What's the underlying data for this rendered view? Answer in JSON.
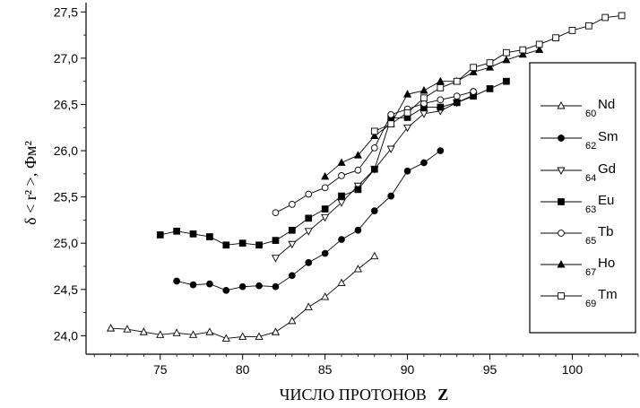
{
  "chart_data": {
    "type": "line",
    "xlabel_main": "ЧИСЛО ПРОТОНОВ",
    "xlabel_var": "Z",
    "ylabel": "δ < r² >, Фм²",
    "xlim": [
      70.5,
      104
    ],
    "ylim": [
      23.8,
      27.6
    ],
    "x_ticks": [
      75,
      80,
      85,
      90,
      95,
      100
    ],
    "x_tick_labels": [
      "75",
      "80",
      "85",
      "90",
      "95",
      "100"
    ],
    "y_ticks": [
      24.0,
      24.5,
      25.0,
      25.5,
      26.0,
      26.5,
      27.0,
      27.5
    ],
    "y_tick_labels": [
      "24,0",
      "24,5",
      "25,0",
      "25,5",
      "26,0",
      "26,5",
      "27,0",
      "27,5"
    ],
    "grid": false,
    "legend_position": "right",
    "series": [
      {
        "name": "Nd",
        "z": "60",
        "marker": "triangle-up-open",
        "x": [
          72,
          73,
          74,
          75,
          76,
          77,
          78,
          79,
          80,
          81,
          82,
          83,
          84,
          85,
          86,
          87,
          88
        ],
        "y": [
          24.08,
          24.07,
          24.04,
          24.01,
          24.03,
          24.01,
          24.04,
          23.97,
          23.99,
          23.99,
          24.04,
          24.16,
          24.31,
          24.42,
          24.57,
          24.72,
          24.86
        ]
      },
      {
        "name": "Sm",
        "z": "62",
        "marker": "circle-filled",
        "x": [
          76,
          77,
          78,
          79,
          80,
          81,
          82,
          83,
          84,
          85,
          86,
          87,
          88,
          89,
          90,
          91,
          92
        ],
        "y": [
          24.59,
          24.55,
          24.56,
          24.49,
          24.53,
          24.54,
          24.53,
          24.65,
          24.79,
          24.89,
          25.04,
          25.14,
          25.35,
          25.51,
          25.78,
          25.87,
          26.0
        ]
      },
      {
        "name": "Gd",
        "z": "64",
        "marker": "triangle-down-open",
        "x": [
          82,
          83,
          84,
          85,
          86,
          87,
          88,
          89,
          90,
          91,
          92,
          93,
          94
        ],
        "y": [
          24.84,
          24.99,
          25.13,
          25.28,
          25.44,
          25.62,
          25.8,
          26.02,
          26.25,
          26.4,
          26.43,
          26.52,
          26.6
        ]
      },
      {
        "name": "Eu",
        "z": "63",
        "marker": "square-filled",
        "x": [
          75,
          76,
          77,
          78,
          79,
          80,
          81,
          82,
          83,
          84,
          85,
          86,
          87,
          88,
          89,
          90,
          91,
          92,
          93,
          94,
          95,
          96
        ],
        "y": [
          25.09,
          25.13,
          25.1,
          25.07,
          24.98,
          25.0,
          24.98,
          25.03,
          25.14,
          25.27,
          25.37,
          25.51,
          25.58,
          25.8,
          26.35,
          26.36,
          26.47,
          26.47,
          26.52,
          26.59,
          26.67,
          26.75
        ]
      },
      {
        "name": "Tb",
        "z": "65",
        "marker": "circle-open",
        "x": [
          82,
          83,
          84,
          85,
          86,
          87,
          88,
          89,
          90,
          91,
          92,
          93,
          94
        ],
        "y": [
          25.33,
          25.42,
          25.53,
          25.6,
          25.73,
          25.79,
          26.03,
          26.39,
          26.45,
          26.51,
          26.55,
          26.59,
          26.64
        ]
      },
      {
        "name": "Ho",
        "z": "67",
        "marker": "triangle-up-filled",
        "x": [
          85,
          86,
          87,
          88,
          89,
          90,
          91,
          92,
          93,
          94,
          95,
          96,
          97,
          98
        ],
        "y": [
          25.72,
          25.87,
          25.95,
          26.16,
          26.29,
          26.61,
          26.65,
          26.75,
          26.75,
          26.85,
          26.9,
          26.98,
          27.04,
          27.09
        ]
      },
      {
        "name": "Tm",
        "z": "69",
        "marker": "square-open",
        "x": [
          88,
          89,
          90,
          91,
          92,
          93,
          94,
          95,
          96,
          97,
          98,
          99,
          100,
          101,
          102,
          103
        ],
        "y": [
          26.21,
          26.29,
          26.41,
          26.57,
          26.68,
          26.75,
          26.9,
          26.95,
          27.06,
          27.09,
          27.15,
          27.22,
          27.3,
          27.35,
          27.44,
          27.46
        ]
      }
    ]
  }
}
